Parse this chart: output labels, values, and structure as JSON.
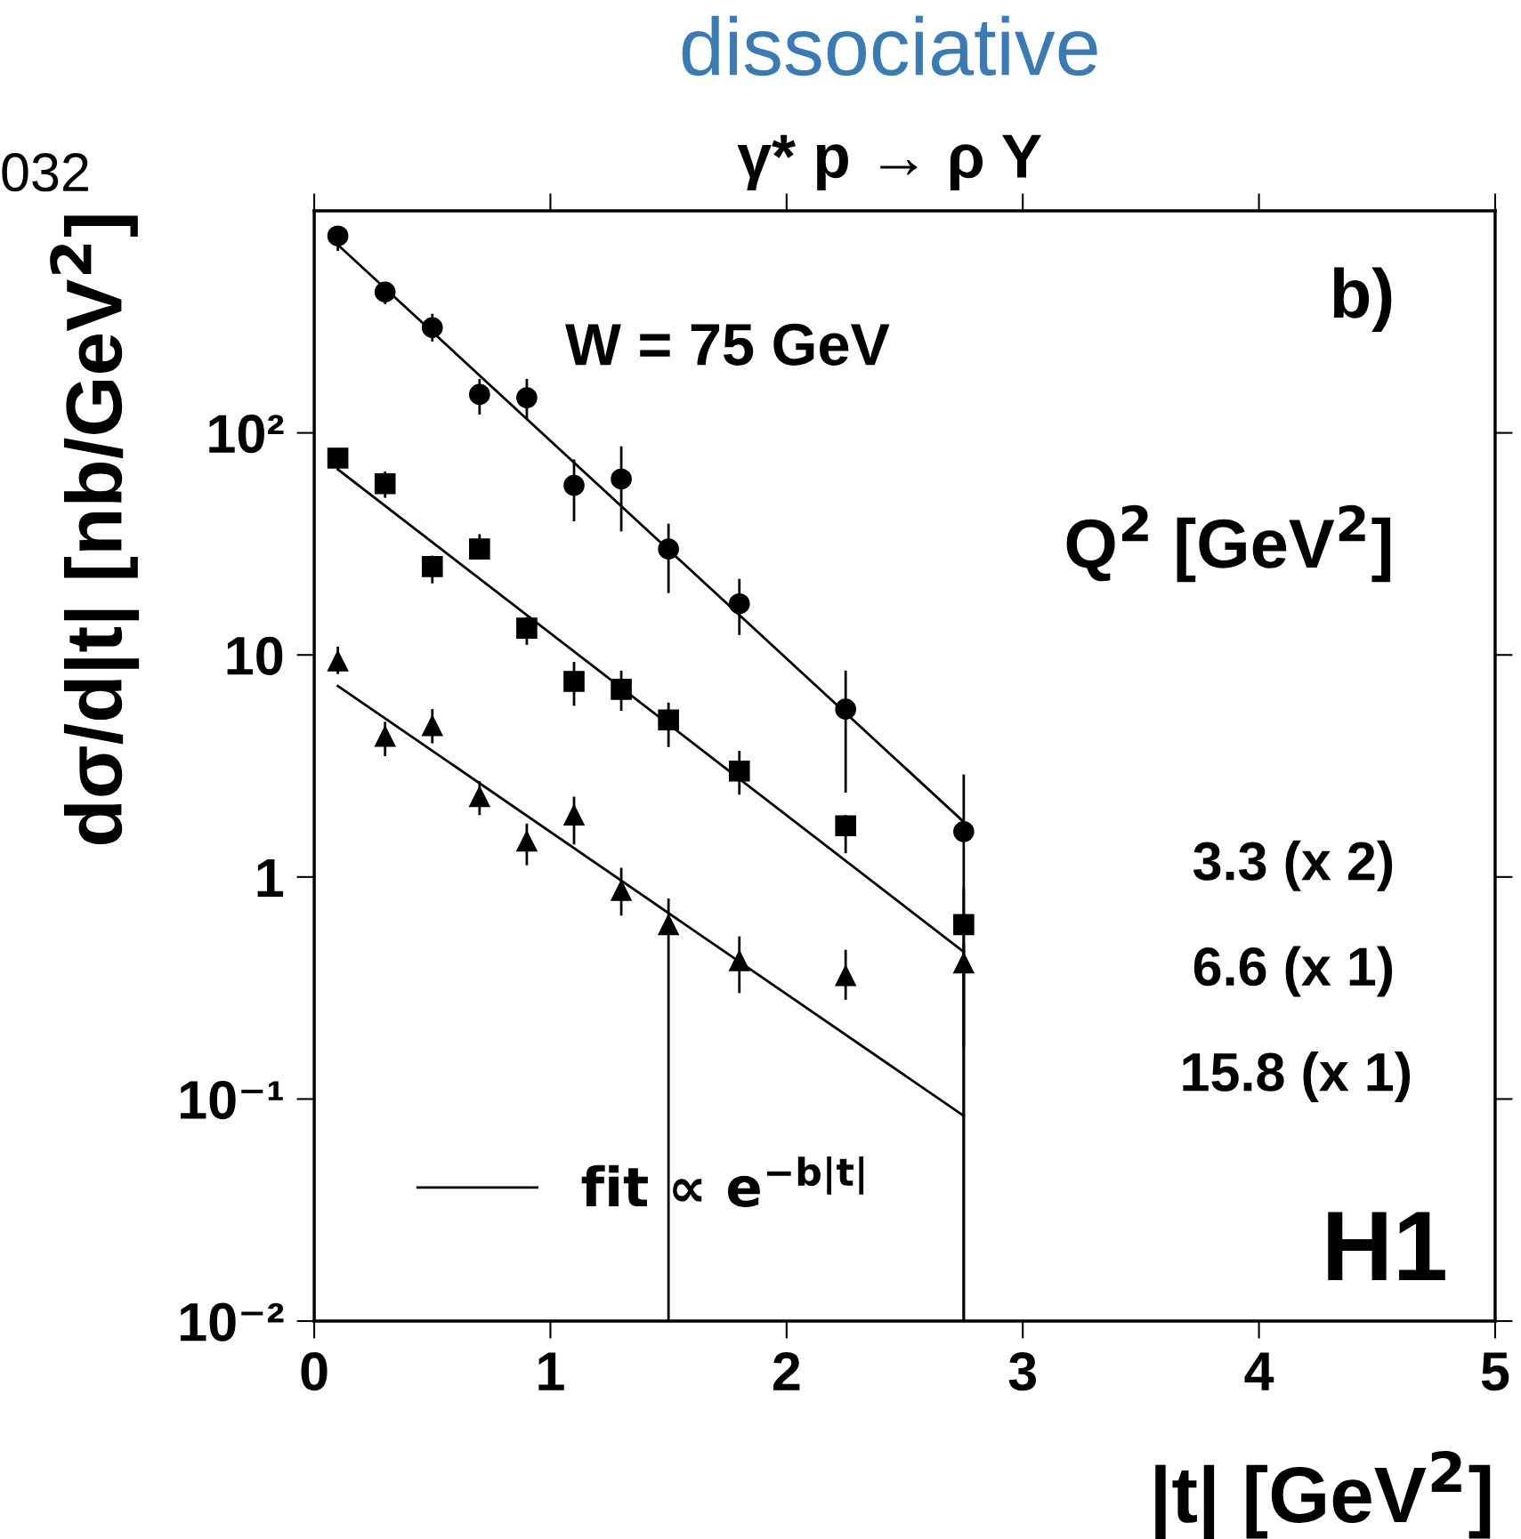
{
  "chart_data": {
    "type": "scatter",
    "title": "dissociative",
    "subtitle": "γ* p → ρ Y",
    "xlabel": "|t| [GeV$^{2}$]",
    "ylabel": "dσ/d|t| [nb/GeV$^{2}$]",
    "log": "y",
    "xlim": [
      0,
      5
    ],
    "ylim": [
      0.01,
      1000
    ],
    "xticks": [
      0,
      1,
      2,
      3,
      4,
      5
    ],
    "yticks": [
      {
        "value": 0.01,
        "label": "10⁻²"
      },
      {
        "value": 0.1,
        "label": "10⁻¹"
      },
      {
        "value": 1,
        "label": "1"
      },
      {
        "value": 10,
        "label": "10"
      },
      {
        "value": 100,
        "label": "10²"
      }
    ],
    "grid": false,
    "legend": "bottom left",
    "series": [
      {
        "marker": "circle",
        "color": "#000000",
        "x": [
          0.1,
          0.3,
          0.5,
          0.7,
          0.9,
          1.1,
          1.3,
          1.5,
          1.8,
          2.25,
          2.75
        ],
        "values": [
          771,
          431,
          298,
          149,
          144,
          58,
          62,
          30,
          17,
          5.7,
          1.6
        ],
        "errors": [
          [
            660,
            850
          ],
          [
            380,
            475
          ],
          [
            258,
            344
          ],
          [
            121,
            175
          ],
          [
            116,
            175
          ],
          [
            40,
            76
          ],
          [
            36,
            87
          ],
          [
            19,
            39
          ],
          [
            12.3,
            22
          ],
          [
            2.4,
            8.5
          ],
          [
            0.01,
            2.9
          ]
        ]
      },
      {
        "marker": "square",
        "color": "#000000",
        "x": [
          0.1,
          0.3,
          0.5,
          0.7,
          0.9,
          1.1,
          1.3,
          1.5,
          1.8,
          2.25,
          2.75
        ],
        "values": [
          77,
          59,
          25,
          30,
          13.2,
          7.6,
          7.0,
          5.1,
          3.0,
          1.7,
          0.61
        ],
        "errors": [
          null,
          [
            51,
            67
          ],
          [
            21,
            28
          ],
          [
            27,
            35
          ],
          [
            11.1,
            14.8
          ],
          [
            5.9,
            9.3
          ],
          [
            5.6,
            8.5
          ],
          [
            3.85,
            6.1
          ],
          [
            2.35,
            3.7
          ],
          [
            1.28,
            1.9
          ],
          [
            0.17,
            0.89
          ]
        ]
      },
      {
        "marker": "triangle",
        "color": "#000000",
        "x": [
          0.1,
          0.3,
          0.5,
          0.7,
          0.9,
          1.1,
          1.3,
          1.5,
          1.8,
          2.25,
          2.75
        ],
        "values": [
          9.4,
          4.3,
          4.8,
          2.3,
          1.45,
          1.9,
          0.87,
          0.61,
          0.42,
          0.36,
          0.41
        ],
        "errors": [
          [
            8.2,
            10.9
          ],
          [
            3.5,
            5.0
          ],
          [
            4.0,
            5.7
          ],
          [
            1.9,
            2.7
          ],
          [
            1.13,
            1.74
          ],
          [
            1.4,
            2.3
          ],
          [
            0.67,
            1.1
          ],
          [
            0.01,
            0.8
          ],
          [
            0.3,
            0.54
          ],
          [
            0.28,
            0.47
          ],
          [
            0.01,
            0.5
          ]
        ]
      },
      {
        "type": "line",
        "name": "fit ∝ e$^{−b|t|}$",
        "color": "#000000",
        "x": [
          0.1,
          2.75
        ],
        "values": [
          703,
          1.77
        ]
      },
      {
        "type": "line",
        "color": "#000000",
        "x": [
          0.1,
          2.75
        ],
        "values": [
          68.5,
          0.46
        ]
      },
      {
        "type": "line",
        "color": "#000000",
        "x": [
          0.1,
          2.75
        ],
        "values": [
          7.25,
          0.084
        ]
      }
    ],
    "annotations": [
      "032",
      "b)",
      "W = 75 GeV",
      "Q$^{2}$ [GeV$^{2}$]",
      "3.3 (x 2)",
      "6.6 (x 1)",
      "15.8 (x 1)",
      "H1"
    ]
  }
}
